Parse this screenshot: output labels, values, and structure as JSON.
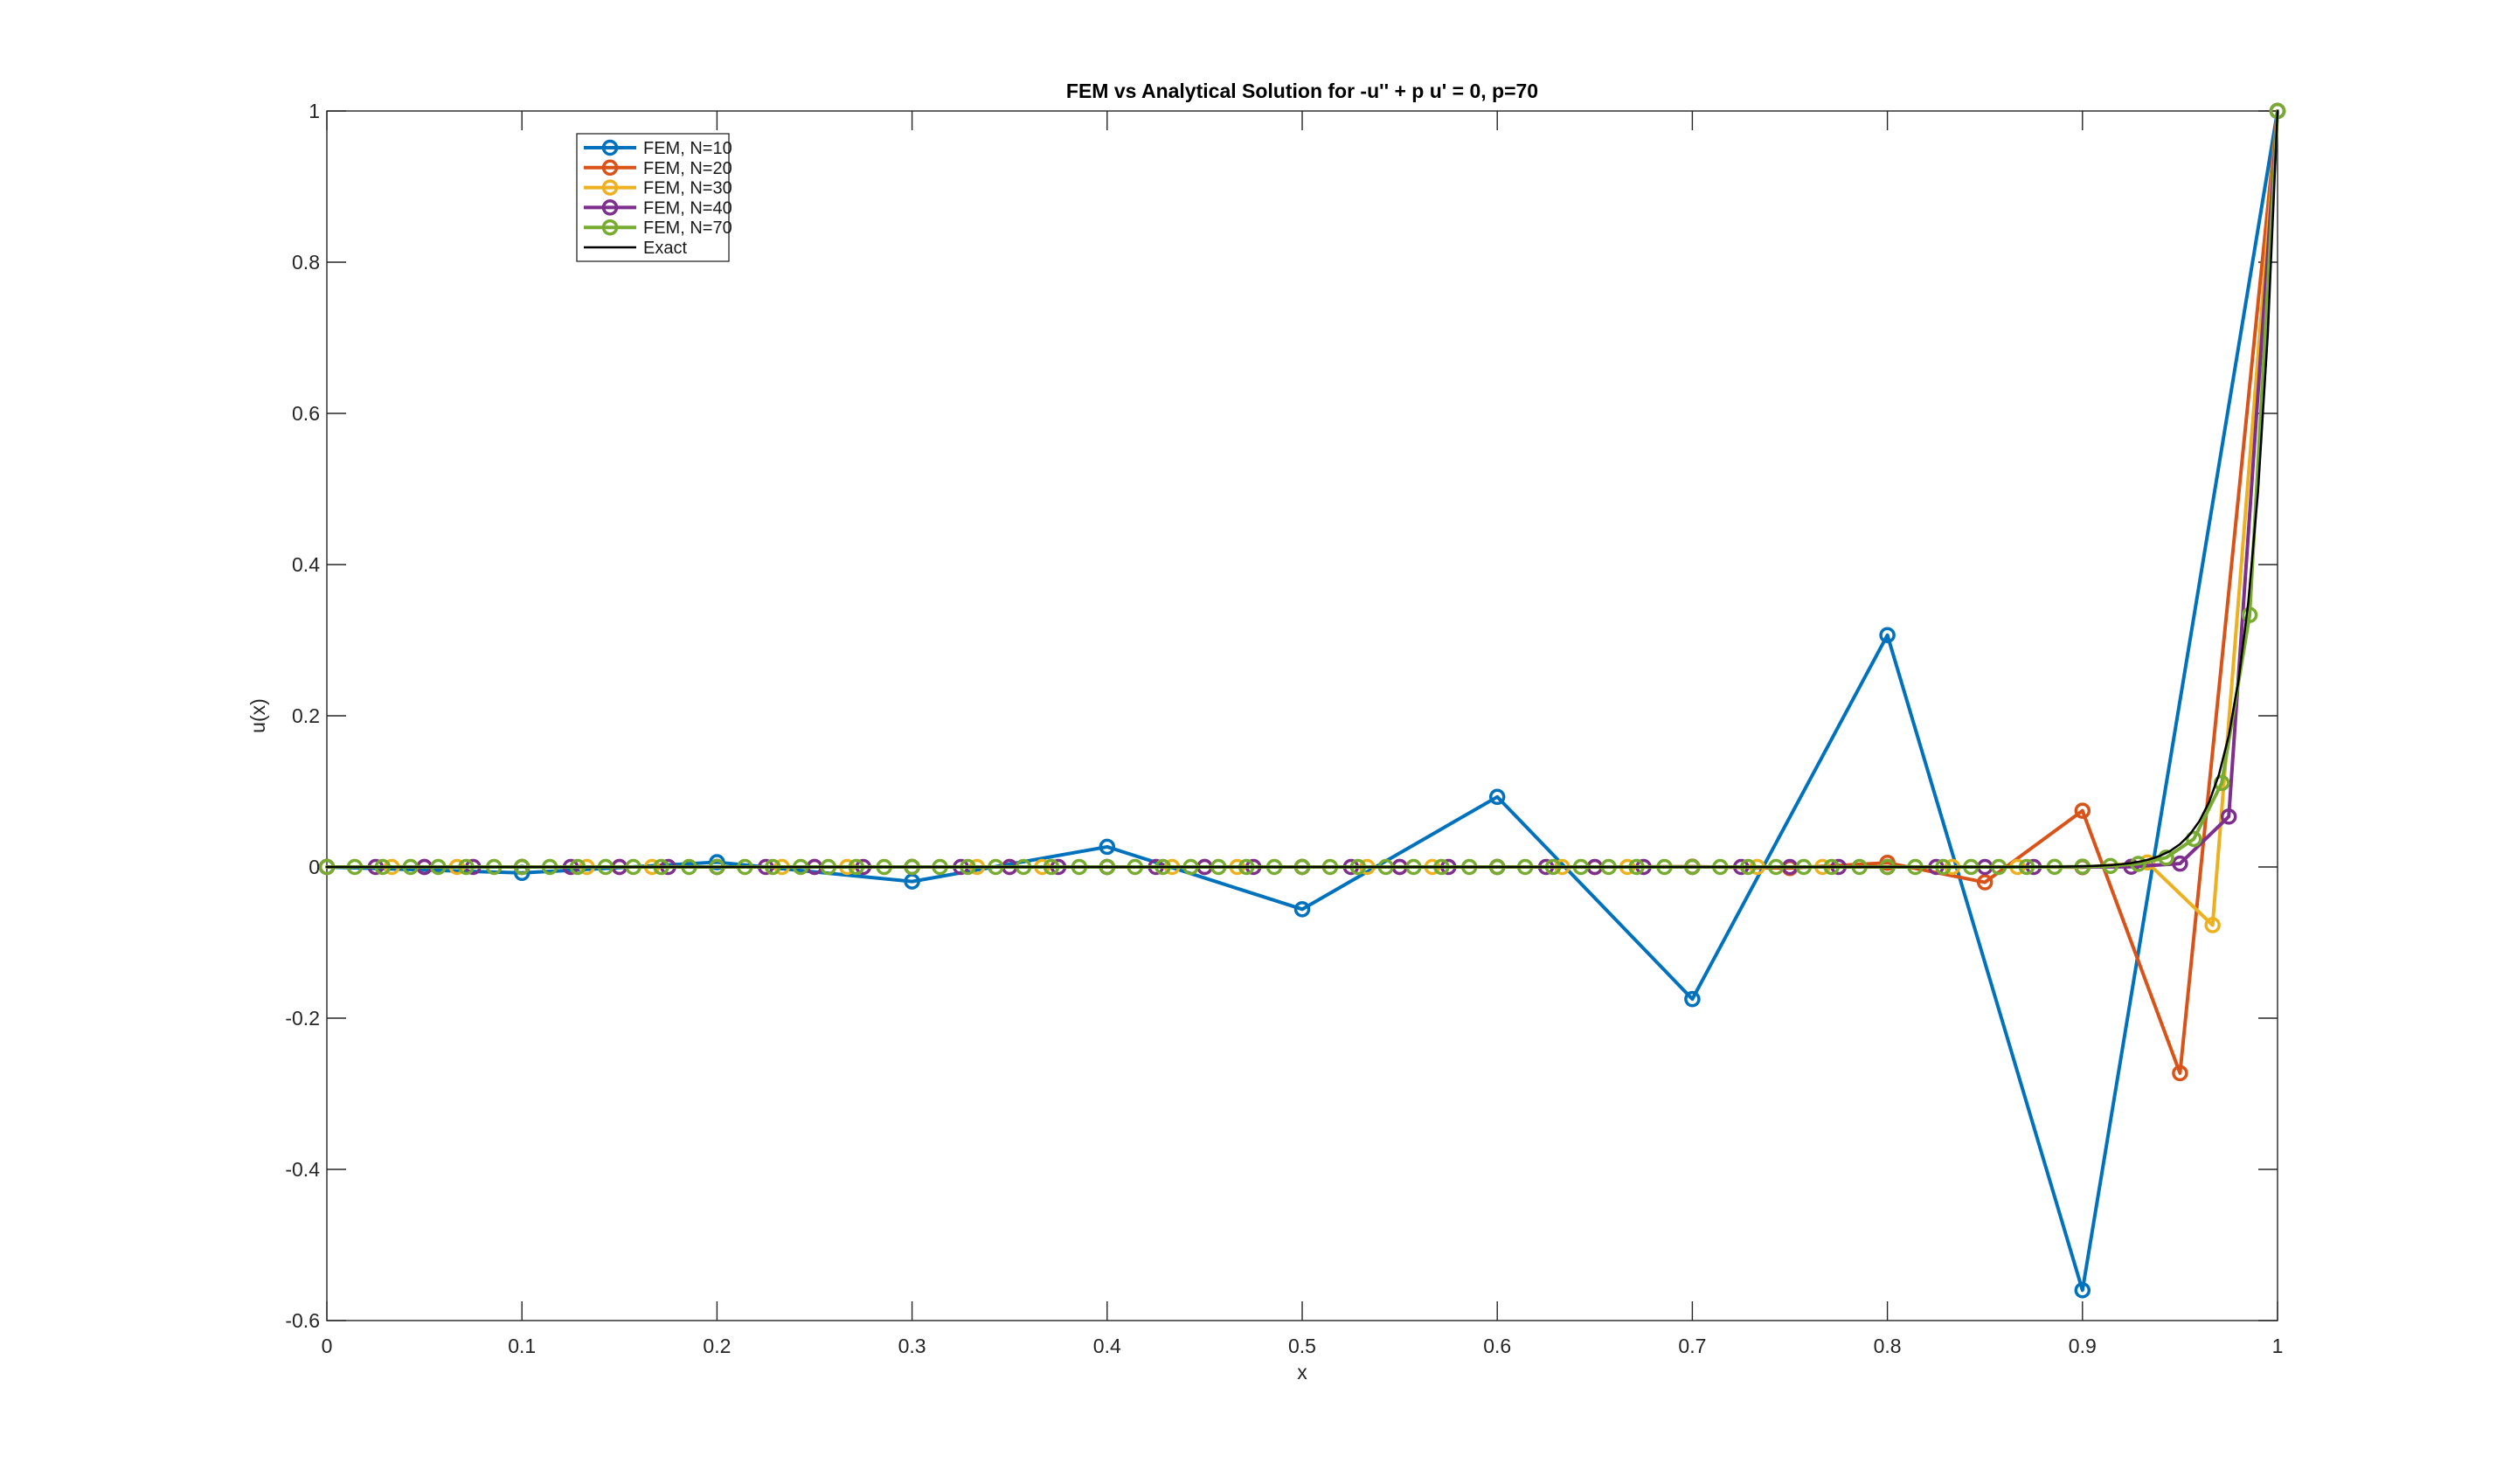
{
  "chart_data": {
    "type": "line",
    "title": "FEM vs Analytical Solution for -u'' + p u' = 0,  p=70",
    "xlabel": "x",
    "ylabel": "u(x)",
    "xlim": [
      0,
      1
    ],
    "ylim": [
      -0.6,
      1
    ],
    "xticks": [
      0,
      0.1,
      0.2,
      0.3,
      0.4,
      0.5,
      0.6,
      0.7,
      0.8,
      0.9,
      1
    ],
    "xtick_labels": [
      "0",
      "0.1",
      "0.2",
      "0.3",
      "0.4",
      "0.5",
      "0.6",
      "0.7",
      "0.8",
      "0.9",
      "1"
    ],
    "yticks": [
      -0.6,
      -0.4,
      -0.2,
      0,
      0.2,
      0.4,
      0.6,
      0.8,
      1
    ],
    "ytick_labels": [
      "-0.6",
      "-0.4",
      "-0.2",
      "0",
      "0.2",
      "0.4",
      "0.6",
      "0.8",
      "1"
    ],
    "grid": false,
    "axis_color": "#252525",
    "legend": {
      "position": "top-left-inside",
      "entries": [
        "FEM, N=10",
        "FEM, N=20",
        "FEM, N=30",
        "FEM, N=40",
        "FEM, N=70",
        "Exact"
      ]
    },
    "series": [
      {
        "name": "FEM, N=10",
        "color": "#0072BD",
        "marker": "o",
        "line_width": 4,
        "x": [
          0,
          0.1,
          0.2,
          0.3,
          0.4,
          0.5,
          0.6,
          0.7,
          0.8,
          0.9,
          1
        ],
        "y": [
          0,
          -0.0078641,
          0.0062913,
          -0.0191885,
          0.0266751,
          -0.0558794,
          0.0927188,
          -0.1747581,
          0.3066999,
          -0.5599247,
          1
        ]
      },
      {
        "name": "FEM, N=20",
        "color": "#D95319",
        "marker": "o",
        "line_width": 4,
        "x": [
          0,
          0.05,
          0.1,
          0.15,
          0.2,
          0.25,
          0.3,
          0.35,
          0.4,
          0.45,
          0.5,
          0.55,
          0.6,
          0.65,
          0.7,
          0.75,
          0.8,
          0.85,
          0.9,
          0.95,
          1
        ],
        "y": [
          0,
          0,
          0,
          0,
          0,
          0,
          0,
          0,
          2e-07,
          -6e-07,
          2.3e-06,
          -8.3e-06,
          3.06e-05,
          -0.0001122,
          0.0004115,
          -0.0015088,
          0.0055324,
          -0.0202855,
          0.0743802,
          -0.2727273,
          1
        ]
      },
      {
        "name": "FEM, N=30",
        "color": "#EDB120",
        "marker": "o",
        "line_width": 4,
        "x": [
          0,
          0.0333,
          0.0667,
          0.1,
          0.1333,
          0.1667,
          0.2,
          0.2333,
          0.2667,
          0.3,
          0.3333,
          0.3667,
          0.4,
          0.4333,
          0.4667,
          0.5,
          0.5333,
          0.5667,
          0.6,
          0.6333,
          0.6667,
          0.7,
          0.7333,
          0.7667,
          0.8,
          0.8333,
          0.8667,
          0.9,
          0.9333,
          0.9667,
          1
        ],
        "y": [
          0,
          0,
          0,
          0,
          0,
          0,
          0,
          0,
          0,
          0,
          0,
          0,
          0,
          0,
          0,
          0,
          0,
          0,
          0,
          0,
          0,
          0,
          0,
          0,
          0,
          -2.7e-06,
          3.5e-05,
          -0.0004552,
          0.0059172,
          -0.0769231,
          1
        ]
      },
      {
        "name": "FEM, N=40",
        "color": "#7E2F8E",
        "marker": "o",
        "line_width": 4,
        "x": [
          0,
          0.025,
          0.05,
          0.075,
          0.1,
          0.125,
          0.15,
          0.175,
          0.2,
          0.225,
          0.25,
          0.275,
          0.3,
          0.325,
          0.35,
          0.375,
          0.4,
          0.425,
          0.45,
          0.475,
          0.5,
          0.525,
          0.55,
          0.575,
          0.6,
          0.625,
          0.65,
          0.675,
          0.7,
          0.725,
          0.75,
          0.775,
          0.8,
          0.825,
          0.85,
          0.875,
          0.9,
          0.925,
          0.95,
          0.975,
          1
        ],
        "y": [
          0,
          0,
          0,
          0,
          0,
          0,
          0,
          0,
          0,
          0,
          0,
          0,
          0,
          0,
          0,
          0,
          0,
          0,
          0,
          0,
          0,
          0,
          0,
          0,
          0,
          0,
          0,
          0,
          0,
          0,
          0,
          0,
          0,
          0,
          0,
          1.3e-06,
          1.98e-05,
          0.0002963,
          0.0044444,
          0.0666667,
          1
        ]
      },
      {
        "name": "FEM, N=70",
        "color": "#77AC30",
        "marker": "o",
        "line_width": 4,
        "x": [
          0,
          0.0143,
          0.0286,
          0.0429,
          0.0571,
          0.0714,
          0.0857,
          0.1,
          0.1143,
          0.1286,
          0.1429,
          0.1571,
          0.1714,
          0.1857,
          0.2,
          0.2143,
          0.2286,
          0.2429,
          0.2571,
          0.2714,
          0.2857,
          0.3,
          0.3143,
          0.3286,
          0.3429,
          0.3571,
          0.3714,
          0.3857,
          0.4,
          0.4143,
          0.4286,
          0.4429,
          0.4571,
          0.4714,
          0.4857,
          0.5,
          0.5143,
          0.5286,
          0.5429,
          0.5571,
          0.5714,
          0.5857,
          0.6,
          0.6143,
          0.6286,
          0.6429,
          0.6571,
          0.6714,
          0.6857,
          0.7,
          0.7143,
          0.7286,
          0.7429,
          0.7571,
          0.7714,
          0.7857,
          0.8,
          0.8143,
          0.8286,
          0.8429,
          0.8571,
          0.8714,
          0.8857,
          0.9,
          0.9143,
          0.9286,
          0.9429,
          0.9571,
          0.9714,
          0.9857,
          1
        ],
        "y": [
          0,
          0,
          0,
          0,
          0,
          0,
          0,
          0,
          0,
          0,
          0,
          0,
          0,
          0,
          0,
          0,
          0,
          0,
          0,
          0,
          0,
          0,
          0,
          0,
          0,
          0,
          0,
          0,
          0,
          0,
          0,
          0,
          0,
          0,
          0,
          0,
          0,
          0,
          0,
          0,
          0,
          0,
          0,
          0,
          0,
          0,
          0,
          0,
          0,
          0,
          0,
          0,
          0,
          0,
          0,
          0,
          2e-07,
          6e-07,
          1.9e-06,
          5.6e-06,
          1.69e-05,
          5.08e-05,
          0.0001524,
          0.0004572,
          0.0013717,
          0.0041152,
          0.0123457,
          0.037037,
          0.1111111,
          0.3333333,
          1
        ]
      },
      {
        "name": "Exact",
        "color": "#000000",
        "marker": "none",
        "line_width": 2.5,
        "x": [
          0,
          0.1,
          0.2,
          0.3,
          0.4,
          0.5,
          0.55,
          0.6,
          0.65,
          0.7,
          0.75,
          0.8,
          0.82,
          0.84,
          0.86,
          0.88,
          0.89,
          0.9,
          0.905,
          0.91,
          0.915,
          0.92,
          0.925,
          0.93,
          0.935,
          0.94,
          0.945,
          0.95,
          0.955,
          0.96,
          0.965,
          0.97,
          0.975,
          0.98,
          0.985,
          0.99,
          0.995,
          1
        ],
        "y": [
          0,
          0,
          0,
          0,
          0,
          0,
          0,
          0,
          0,
          0,
          0,
          8e-07,
          3.4e-06,
          1.38e-05,
          5.6e-05,
          0.0002249,
          0.0004528,
          0.0009119,
          0.0012941,
          0.0018363,
          0.0026059,
          0.0036883,
          0.0052475,
          0.0074466,
          0.0105672,
          0.0149956,
          0.0212797,
          0.0301974,
          0.0428513,
          0.0608101,
          0.0862936,
          0.1224564,
          0.1737739,
          0.246597,
          0.3499378,
          0.4965853,
          0.7046881,
          1
        ]
      }
    ]
  }
}
